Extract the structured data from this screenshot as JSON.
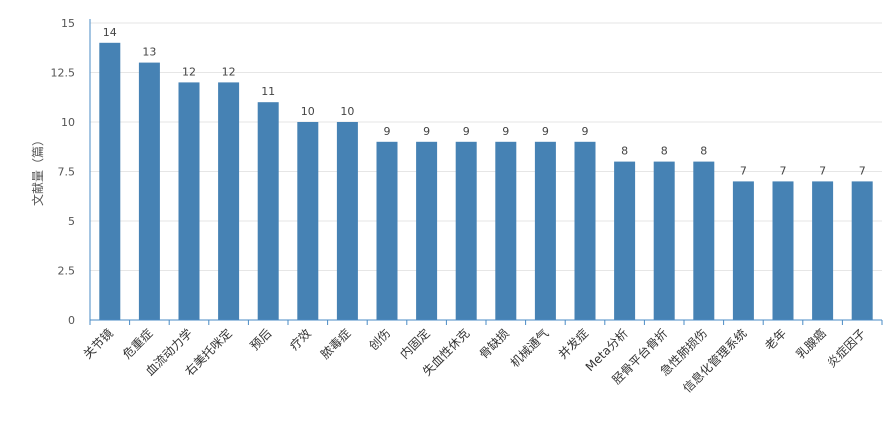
{
  "chart_data": {
    "type": "bar",
    "title": "",
    "xlabel": "",
    "ylabel": "文献量（篇）",
    "ylim": [
      0,
      15
    ],
    "yticks": [
      "0",
      "2.5",
      "5",
      "7.5",
      "10",
      "12.5",
      "15"
    ],
    "ytick_values": [
      0,
      2.5,
      5,
      7.5,
      10,
      12.5,
      15
    ],
    "categories": [
      "关节镜",
      "危重症",
      "血流动力学",
      "右美托咪定",
      "预后",
      "疗效",
      "脓毒症",
      "创伤",
      "内固定",
      "失血性休克",
      "骨缺损",
      "机械通气",
      "并发症",
      "Meta分析",
      "胫骨平台骨折",
      "急性肺损伤",
      "信息化管理系统",
      "老年",
      "乳腺癌",
      "炎症因子"
    ],
    "values": [
      14,
      13,
      12,
      12,
      11,
      10,
      10,
      9,
      9,
      9,
      9,
      9,
      9,
      8,
      8,
      8,
      7,
      7,
      7,
      7
    ],
    "data_labels": [
      "14",
      "13",
      "12",
      "12",
      "11",
      "10",
      "10",
      "9",
      "9",
      "9",
      "9",
      "9",
      "9",
      "8",
      "8",
      "8",
      "7",
      "7",
      "7",
      "7"
    ],
    "grid": true,
    "legend": "none",
    "colors": {
      "bar": "#4682b4",
      "axis": "#4a8bc4",
      "grid": "#e6e6e6"
    }
  }
}
